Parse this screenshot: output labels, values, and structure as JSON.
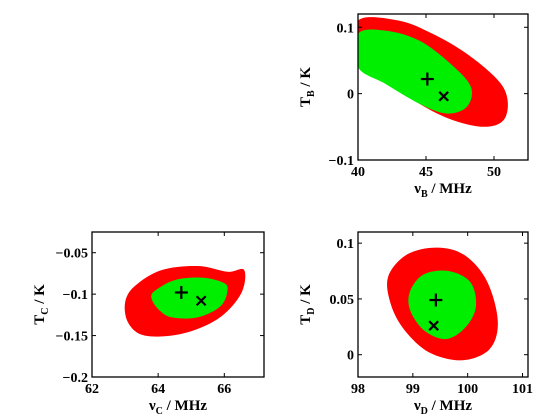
{
  "colors": {
    "outer": "#ff0000",
    "inner": "#00ee00",
    "frame": "#000000",
    "marker": "#000000"
  },
  "chart_data": [
    {
      "type": "contour",
      "name": "panel-B",
      "xlabel_main": "ν",
      "xlabel_sub": "B",
      "xlabel_unit": " / MHz",
      "ylabel_main": "T",
      "ylabel_sub": "B",
      "ylabel_unit": " / K",
      "xlim": [
        40,
        52.5
      ],
      "ylim": [
        -0.1,
        0.12
      ],
      "xticks": [
        40,
        45,
        50
      ],
      "xticklabels": [
        "40",
        "45",
        "50"
      ],
      "yticks": [
        -0.1,
        0,
        0.1
      ],
      "yticklabels": [
        "−0.1",
        "0",
        "0.1"
      ],
      "outer_contour": [
        [
          40,
          0.11
        ],
        [
          43,
          0.11
        ],
        [
          45.5,
          0.09
        ],
        [
          48,
          0.06
        ],
        [
          50.3,
          0.02
        ],
        [
          51,
          -0.01
        ],
        [
          50.7,
          -0.04
        ],
        [
          49.3,
          -0.05
        ],
        [
          47,
          -0.04
        ],
        [
          44.5,
          -0.015
        ],
        [
          41.5,
          0.03
        ],
        [
          40,
          0.05
        ]
      ],
      "inner_contour": [
        [
          40,
          0.09
        ],
        [
          42,
          0.095
        ],
        [
          44.5,
          0.08
        ],
        [
          46.8,
          0.045
        ],
        [
          48.3,
          0.01
        ],
        [
          48,
          -0.02
        ],
        [
          46.5,
          -0.03
        ],
        [
          44.5,
          -0.015
        ],
        [
          42,
          0.015
        ],
        [
          40,
          0.04
        ]
      ],
      "markers": [
        {
          "symbol": "+",
          "x": 45.1,
          "y": 0.022
        },
        {
          "symbol": "×",
          "x": 46.3,
          "y": -0.004
        }
      ]
    },
    {
      "type": "contour",
      "name": "panel-C",
      "xlabel_main": "ν",
      "xlabel_sub": "C",
      "xlabel_unit": " / MHz",
      "ylabel_main": "T",
      "ylabel_sub": "C",
      "ylabel_unit": " / K",
      "xlim": [
        62,
        67.2
      ],
      "ylim": [
        -0.2,
        -0.025
      ],
      "xticks": [
        62,
        64,
        66
      ],
      "xticklabels": [
        "62",
        "64",
        "66"
      ],
      "yticks": [
        -0.2,
        -0.15,
        -0.1,
        -0.05
      ],
      "yticklabels": [
        "−0.2",
        "−0.15",
        "−0.1",
        "−0.05"
      ],
      "outer_contour": [
        [
          63.3,
          -0.09
        ],
        [
          64.1,
          -0.071
        ],
        [
          65.2,
          -0.066
        ],
        [
          66.1,
          -0.073
        ],
        [
          66.6,
          -0.071
        ],
        [
          66.5,
          -0.1
        ],
        [
          65.8,
          -0.13
        ],
        [
          64.7,
          -0.148
        ],
        [
          63.6,
          -0.15
        ],
        [
          63.1,
          -0.135
        ],
        [
          63,
          -0.11
        ]
      ],
      "inner_contour": [
        [
          63.9,
          -0.096
        ],
        [
          64.5,
          -0.083
        ],
        [
          65.3,
          -0.08
        ],
        [
          65.9,
          -0.085
        ],
        [
          66.1,
          -0.093
        ],
        [
          65.9,
          -0.114
        ],
        [
          65.2,
          -0.128
        ],
        [
          64.4,
          -0.128
        ],
        [
          64,
          -0.118
        ],
        [
          63.8,
          -0.105
        ]
      ],
      "markers": [
        {
          "symbol": "+",
          "x": 64.7,
          "y": -0.098
        },
        {
          "symbol": "×",
          "x": 65.3,
          "y": -0.108
        }
      ]
    },
    {
      "type": "contour",
      "name": "panel-D",
      "xlabel_main": "ν",
      "xlabel_sub": "D",
      "xlabel_unit": " / MHz",
      "ylabel_main": "T",
      "ylabel_sub": "D",
      "ylabel_unit": " / K",
      "xlim": [
        98,
        101.1
      ],
      "ylim": [
        -0.02,
        0.11
      ],
      "xticks": [
        98,
        99,
        100,
        101
      ],
      "xticklabels": [
        "98",
        "99",
        "100",
        "101"
      ],
      "yticks": [
        0,
        0.05,
        0.1
      ],
      "yticklabels": [
        "0",
        "0.05",
        "0.1"
      ],
      "outer_contour": [
        [
          98.55,
          0.07
        ],
        [
          98.9,
          0.09
        ],
        [
          99.45,
          0.096
        ],
        [
          99.95,
          0.089
        ],
        [
          100.35,
          0.066
        ],
        [
          100.55,
          0.03
        ],
        [
          100.4,
          0.005
        ],
        [
          99.9,
          -0.005
        ],
        [
          99.3,
          0.002
        ],
        [
          98.85,
          0.022
        ],
        [
          98.6,
          0.045
        ]
      ],
      "inner_contour": [
        [
          98.95,
          0.057
        ],
        [
          99.2,
          0.072
        ],
        [
          99.65,
          0.075
        ],
        [
          100.05,
          0.065
        ],
        [
          100.15,
          0.043
        ],
        [
          99.95,
          0.024
        ],
        [
          99.6,
          0.014
        ],
        [
          99.2,
          0.022
        ],
        [
          98.95,
          0.04
        ]
      ],
      "markers": [
        {
          "symbol": "+",
          "x": 99.42,
          "y": 0.049
        },
        {
          "symbol": "×",
          "x": 99.38,
          "y": 0.026
        }
      ]
    }
  ]
}
